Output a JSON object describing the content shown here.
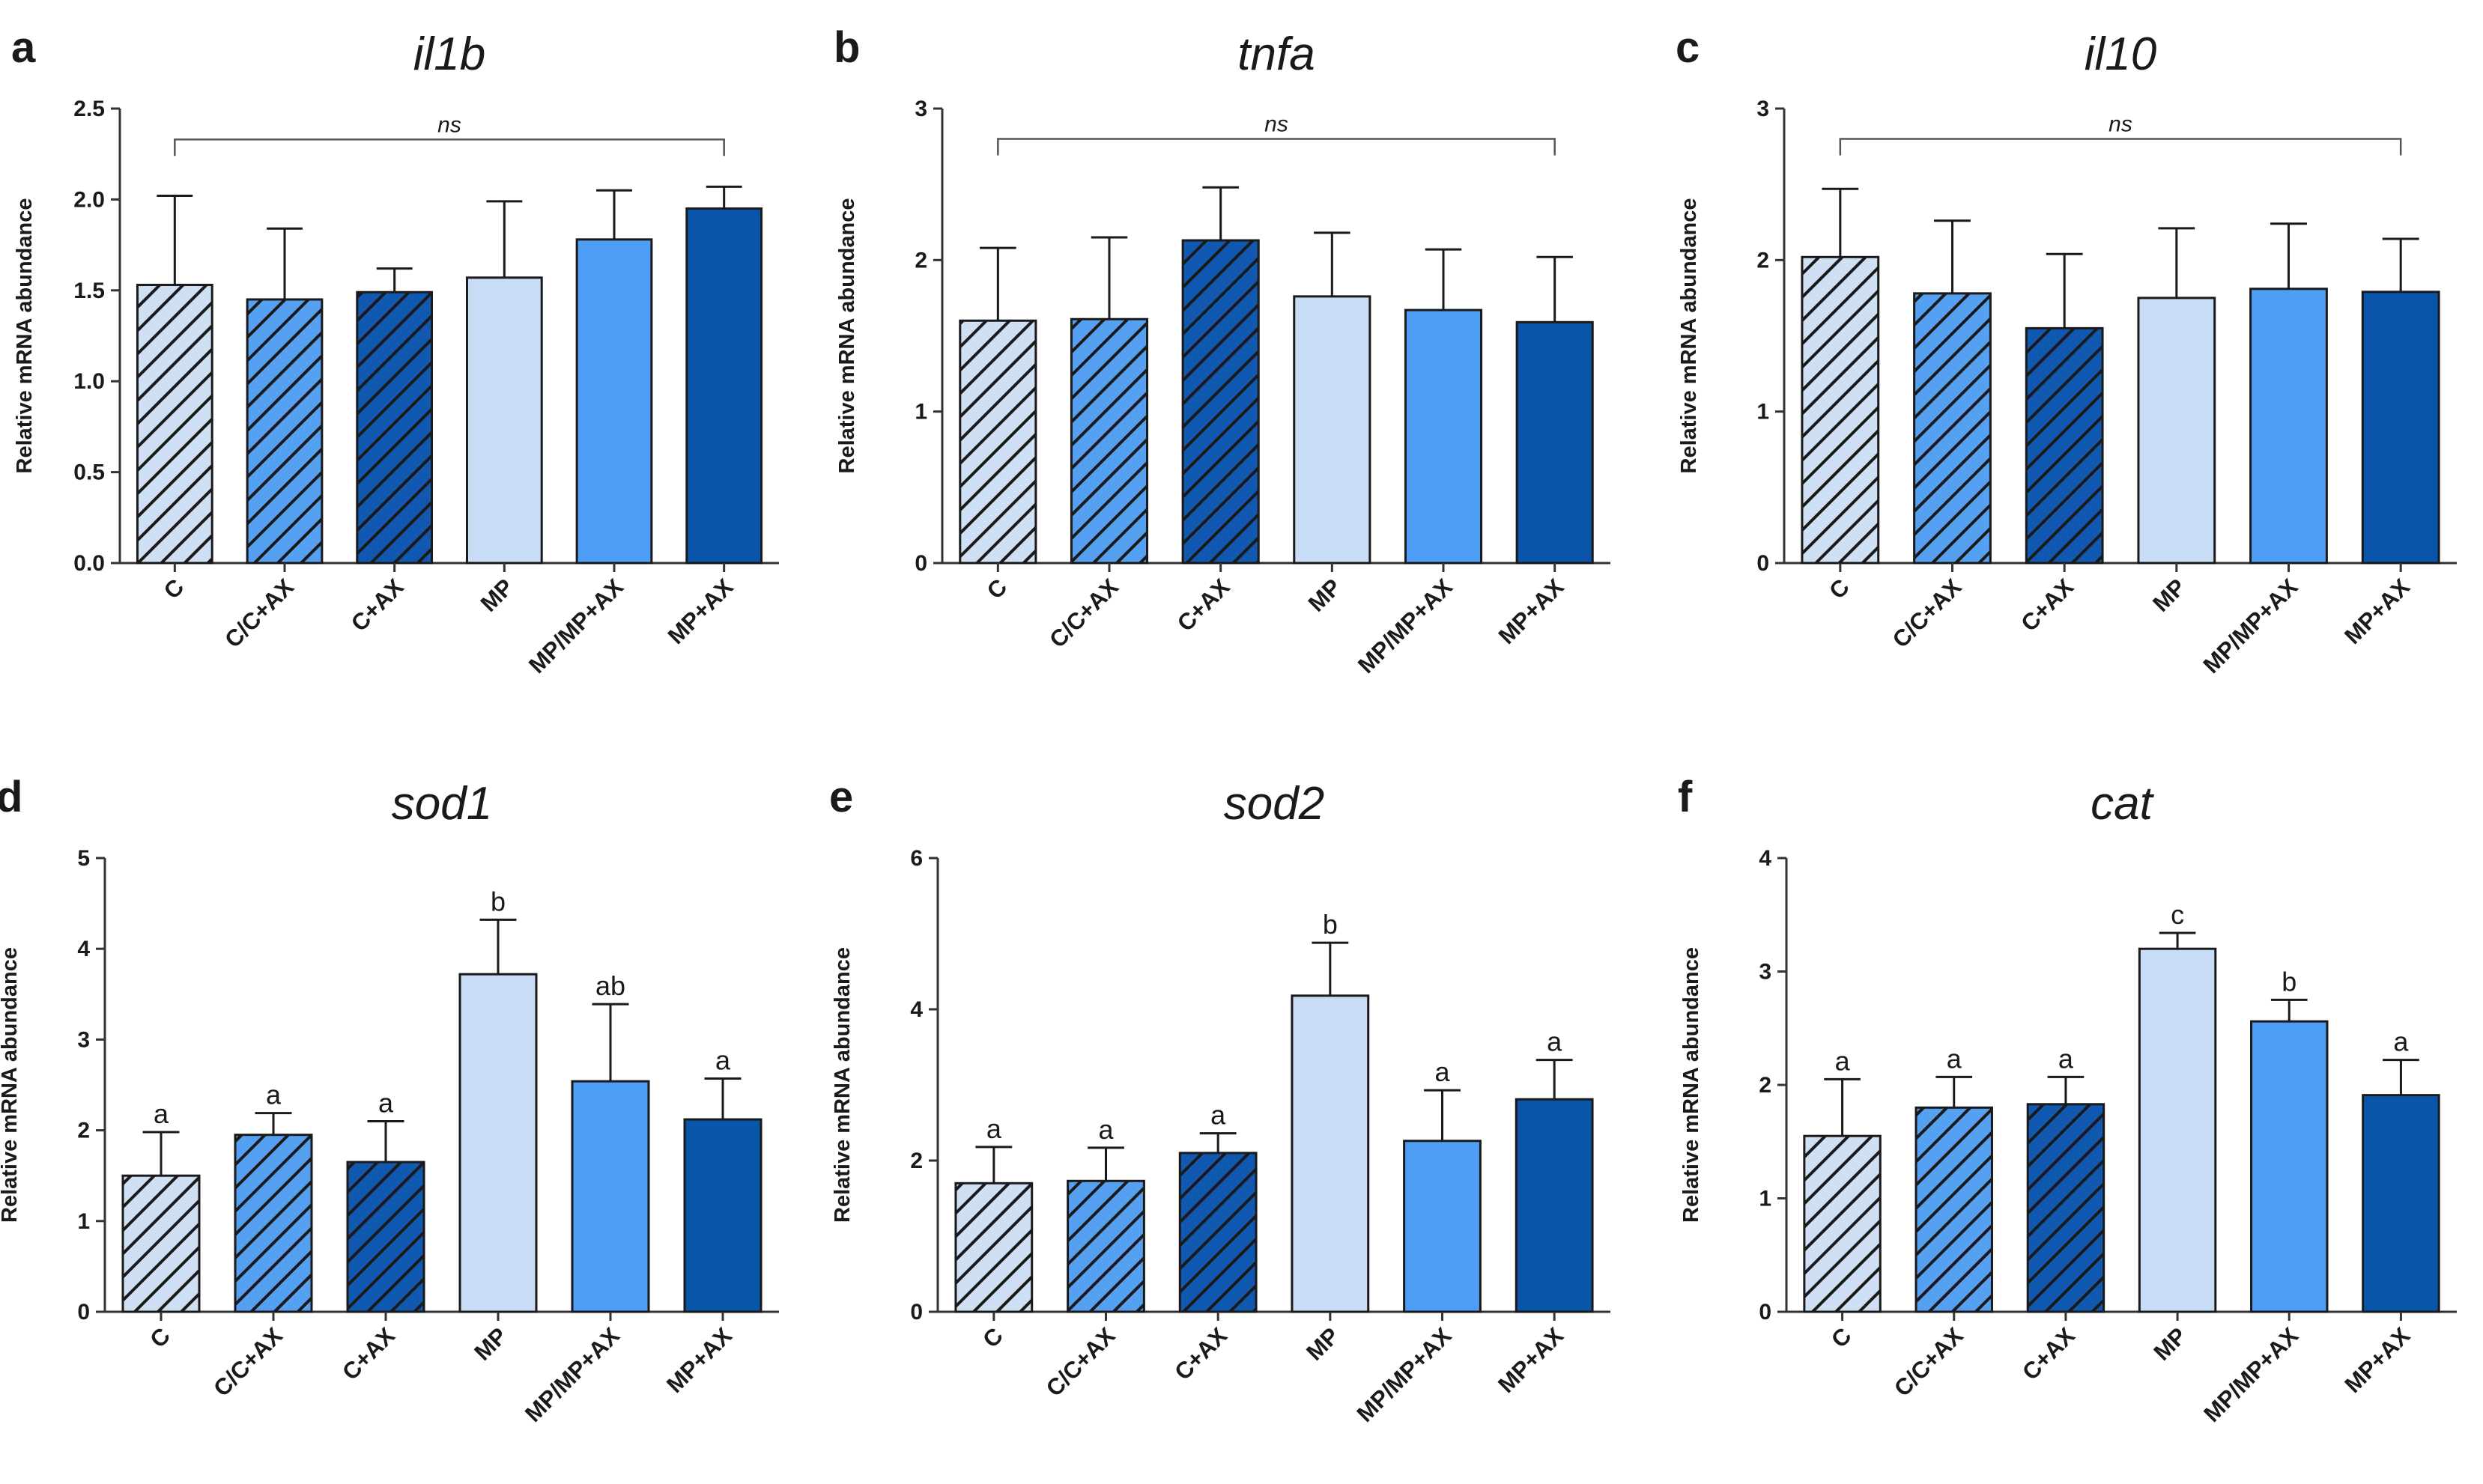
{
  "figure": {
    "colors": {
      "C": "#cfe0f5",
      "C/C+AX": "#55a0f0",
      "C+AX": "#1058b0",
      "MP": "#c8dcf6",
      "MP/MP+AX": "#4f9ef6",
      "MP+AX": "#0a55aa",
      "axis": "#333333",
      "hatch": "#1a1a1a"
    },
    "hatched": [
      "C",
      "C/C+AX",
      "C+AX"
    ]
  },
  "chart_data": [
    {
      "panel": "a",
      "title": "il1b",
      "type": "bar",
      "ylabel": "Relative mRNA abundance",
      "categories": [
        "C",
        "C/C+AX",
        "C+AX",
        "MP",
        "MP/MP+AX",
        "MP+AX"
      ],
      "values": [
        1.53,
        1.45,
        1.49,
        1.57,
        1.78,
        1.95
      ],
      "errors": [
        0.49,
        0.39,
        0.13,
        0.42,
        0.27,
        0.12
      ],
      "ylim": [
        0,
        2.5
      ],
      "yticks": [
        "0.0",
        "0.5",
        "1.0",
        "1.5",
        "2.0",
        "2.5"
      ],
      "significance": {
        "type": "bracket",
        "label": "ns",
        "level": 2.33
      }
    },
    {
      "panel": "b",
      "title": "tnfa",
      "type": "bar",
      "ylabel": "Relative mRNA abundance",
      "categories": [
        "C",
        "C/C+AX",
        "C+AX",
        "MP",
        "MP/MP+AX",
        "MP+AX"
      ],
      "values": [
        1.6,
        1.61,
        2.13,
        1.76,
        1.67,
        1.59
      ],
      "errors": [
        0.48,
        0.54,
        0.35,
        0.42,
        0.4,
        0.43
      ],
      "ylim": [
        0,
        3
      ],
      "yticks": [
        "0",
        "1",
        "2",
        "3"
      ],
      "significance": {
        "type": "bracket",
        "label": "ns",
        "level": 2.8
      }
    },
    {
      "panel": "c",
      "title": "il10",
      "type": "bar",
      "ylabel": "Relative mRNA abundance",
      "categories": [
        "C",
        "C/C+AX",
        "C+AX",
        "MP",
        "MP/MP+AX",
        "MP+AX"
      ],
      "values": [
        2.02,
        1.78,
        1.55,
        1.75,
        1.81,
        1.79
      ],
      "errors": [
        0.45,
        0.48,
        0.49,
        0.46,
        0.43,
        0.35
      ],
      "ylim": [
        0,
        3
      ],
      "yticks": [
        "0",
        "1",
        "2",
        "3"
      ],
      "significance": {
        "type": "bracket",
        "label": "ns",
        "level": 2.8
      }
    },
    {
      "panel": "d",
      "title": "sod1",
      "type": "bar",
      "ylabel": "Relative mRNA abundance",
      "categories": [
        "C",
        "C/C+AX",
        "C+AX",
        "MP",
        "MP/MP+AX",
        "MP+AX"
      ],
      "values": [
        1.5,
        1.95,
        1.65,
        3.72,
        2.54,
        2.12
      ],
      "errors": [
        0.48,
        0.24,
        0.45,
        0.6,
        0.85,
        0.45
      ],
      "ylim": [
        0,
        5
      ],
      "yticks": [
        "0",
        "1",
        "2",
        "3",
        "4",
        "5"
      ],
      "significance": {
        "type": "letters",
        "letters": [
          "a",
          "a",
          "a",
          "b",
          "ab",
          "a"
        ]
      }
    },
    {
      "panel": "e",
      "title": "sod2",
      "type": "bar",
      "ylabel": "Relative mRNA abundance",
      "categories": [
        "C",
        "C/C+AX",
        "C+AX",
        "MP",
        "MP/MP+AX",
        "MP+AX"
      ],
      "values": [
        1.7,
        1.73,
        2.1,
        4.18,
        2.26,
        2.81
      ],
      "errors": [
        0.48,
        0.44,
        0.26,
        0.7,
        0.67,
        0.52
      ],
      "ylim": [
        0,
        6
      ],
      "yticks": [
        "0",
        "2",
        "4",
        "6"
      ],
      "significance": {
        "type": "letters",
        "letters": [
          "a",
          "a",
          "a",
          "b",
          "a",
          "a"
        ]
      }
    },
    {
      "panel": "f",
      "title": "cat",
      "type": "bar",
      "ylabel": "Relative mRNA abundance",
      "categories": [
        "C",
        "C/C+AX",
        "C+AX",
        "MP",
        "MP/MP+AX",
        "MP+AX"
      ],
      "values": [
        1.55,
        1.8,
        1.83,
        3.2,
        2.56,
        1.91
      ],
      "errors": [
        0.5,
        0.27,
        0.24,
        0.14,
        0.19,
        0.31
      ],
      "ylim": [
        0,
        4
      ],
      "yticks": [
        "0",
        "1",
        "2",
        "3",
        "4"
      ],
      "significance": {
        "type": "letters",
        "letters": [
          "a",
          "a",
          "a",
          "c",
          "b",
          "a"
        ]
      }
    }
  ]
}
